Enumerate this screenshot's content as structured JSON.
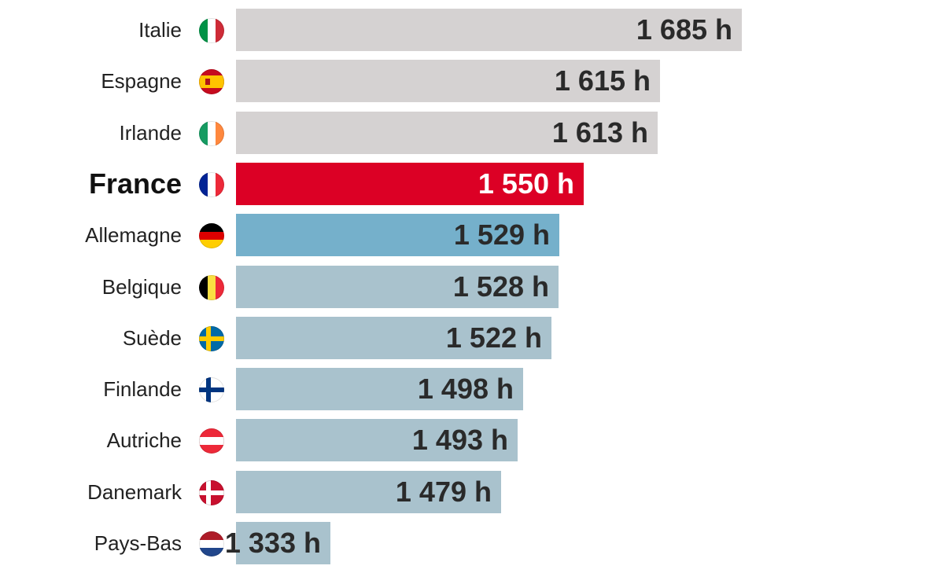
{
  "chart_data": {
    "type": "bar",
    "orientation": "horizontal",
    "unit": "h",
    "categories": [
      "Italie",
      "Espagne",
      "Irlande",
      "France",
      "Allemagne",
      "Belgique",
      "Suède",
      "Finlande",
      "Autriche",
      "Danemark",
      "Pays-Bas"
    ],
    "values": [
      1685,
      1615,
      1613,
      1550,
      1529,
      1528,
      1522,
      1498,
      1493,
      1479,
      1333
    ],
    "value_labels": [
      "1 685 h",
      "1 615 h",
      "1 613 h",
      "1 550 h",
      "1 529 h",
      "1 528 h",
      "1 522 h",
      "1 498 h",
      "1 493 h",
      "1 479 h",
      "1 333 h"
    ],
    "flags": [
      "italy-flag-icon",
      "spain-flag-icon",
      "ireland-flag-icon",
      "france-flag-icon",
      "germany-flag-icon",
      "belgium-flag-icon",
      "sweden-flag-icon",
      "finland-flag-icon",
      "austria-flag-icon",
      "denmark-flag-icon",
      "netherlands-flag-icon"
    ],
    "highlight": "France",
    "bar_colors": [
      "#d5d2d2",
      "#d5d2d2",
      "#d5d2d2",
      "#dc0025",
      "#75b0cb",
      "#a9c2cd",
      "#a9c2cd",
      "#a9c2cd",
      "#a9c2cd",
      "#a9c2cd",
      "#a9c2cd"
    ],
    "grid": false,
    "legend": "none"
  }
}
